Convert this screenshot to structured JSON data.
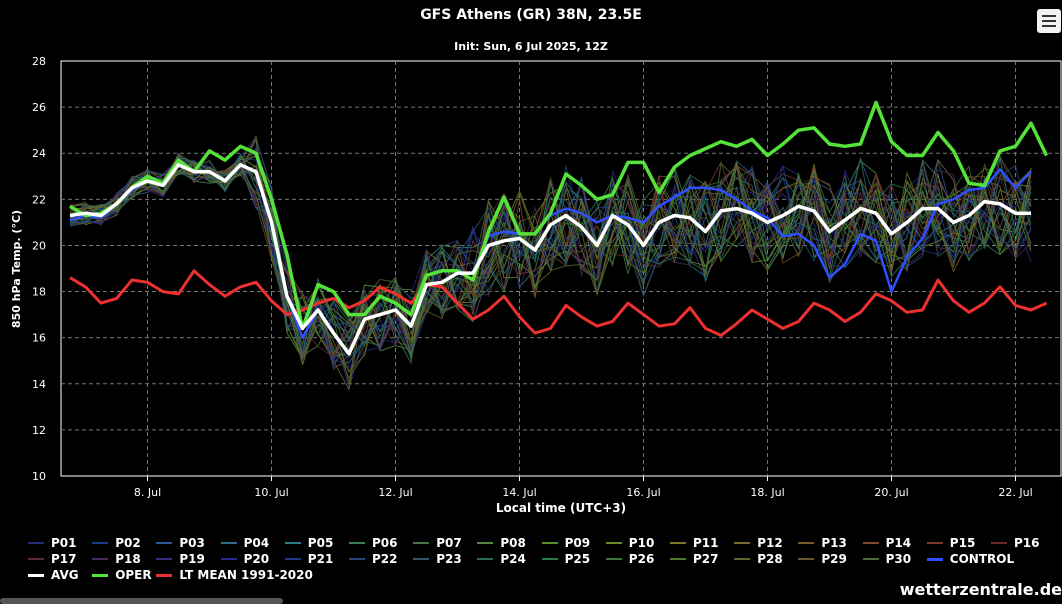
{
  "title": "GFS Athens (GR) 38N, 23.5E",
  "subtitle": "Init: Sun, 6 Jul 2025, 12Z",
  "watermark": "wetterzentrale.de",
  "menu_icon": "hamburger-menu-icon",
  "chart_data": {
    "type": "line",
    "title": "GFS Athens (GR) 38N, 23.5E",
    "subtitle": "Init: Sun, 6 Jul 2025, 12Z",
    "xlabel": "Local time (UTC+3)",
    "ylabel": "850 hPa Temp. (°C)",
    "ylim": [
      10,
      28
    ],
    "yticks": [
      10,
      12,
      14,
      16,
      18,
      20,
      22,
      24,
      26,
      28
    ],
    "xticks": [
      {
        "day": 8,
        "label": "8. Jul"
      },
      {
        "day": 10,
        "label": "10. Jul"
      },
      {
        "day": 12,
        "label": "12. Jul"
      },
      {
        "day": 14,
        "label": "14. Jul"
      },
      {
        "day": 16,
        "label": "16. Jul"
      },
      {
        "day": 18,
        "label": "18. Jul"
      },
      {
        "day": 20,
        "label": "20. Jul"
      },
      {
        "day": 22,
        "label": "22. Jul"
      }
    ],
    "grid": true,
    "legend_position": "bottom",
    "x_start": "2025-07-06 18:00",
    "x_step_hours": 6,
    "colors": {
      "control": "#2f4fff",
      "avg": "#ffffff",
      "oper": "#55e33a",
      "ltmean": "#ee3030"
    },
    "member_colors": [
      "#1f2d7a",
      "#1c3a8c",
      "#2d5a9a",
      "#2a6b8f",
      "#2f7b8e",
      "#3a7f5a",
      "#3f7a45",
      "#4a8a3a",
      "#5a8f2e",
      "#6c8a2a",
      "#7a7a2a",
      "#7e6a2a",
      "#7d5a2a",
      "#7a4a2a",
      "#7a3a2a",
      "#6a2a2a",
      "#5a2a3a",
      "#4a2a5a",
      "#3a2a7a",
      "#2a2a8a",
      "#1f3a8a",
      "#1f4a7a",
      "#2a5a6a",
      "#2a6a5a",
      "#2a7a4a",
      "#3a7a3a",
      "#4a7a2a",
      "#5a6a2a",
      "#6a5a2a",
      "#4a6a3a"
    ],
    "series": [
      {
        "name": "AVG",
        "values": [
          21.3,
          21.4,
          21.3,
          21.8,
          22.5,
          22.8,
          22.6,
          23.5,
          23.2,
          23.2,
          22.8,
          23.5,
          23.2,
          21.0,
          17.8,
          16.4,
          17.2,
          16.2,
          15.3,
          16.8,
          17.0,
          17.2,
          16.5,
          18.3,
          18.4,
          18.8,
          18.8,
          20.0,
          20.2,
          20.3,
          19.8,
          20.9,
          21.3,
          20.8,
          20.0,
          21.3,
          20.9,
          20.0,
          21.0,
          21.3,
          21.2,
          20.6,
          21.5,
          21.6,
          21.4,
          21.0,
          21.3,
          21.7,
          21.5,
          20.6,
          21.1,
          21.6,
          21.4,
          20.5,
          21.0,
          21.6,
          21.6,
          21.0,
          21.3,
          21.9,
          21.8,
          21.4,
          21.4
        ]
      },
      {
        "name": "OPER",
        "values": [
          21.7,
          21.3,
          21.4,
          21.8,
          22.5,
          23.0,
          22.7,
          23.7,
          23.2,
          24.1,
          23.7,
          24.3,
          24.0,
          22.0,
          19.6,
          16.4,
          18.3,
          18.0,
          17.0,
          17.0,
          17.8,
          17.5,
          17.0,
          18.7,
          18.9,
          18.9,
          18.5,
          20.6,
          22.1,
          20.5,
          20.5,
          21.4,
          23.1,
          22.6,
          22.0,
          22.2,
          23.6,
          23.6,
          22.3,
          23.4,
          23.9,
          24.2,
          24.5,
          24.3,
          24.6,
          23.9,
          24.4,
          25.0,
          25.1,
          24.4,
          24.3,
          24.4,
          26.2,
          24.5,
          23.9,
          23.9,
          24.9,
          24.1,
          22.7,
          22.6,
          24.1,
          24.3,
          25.3,
          23.9
        ]
      },
      {
        "name": "CONTROL",
        "values": [
          21.1,
          21.3,
          21.2,
          21.8,
          22.4,
          22.8,
          22.7,
          23.5,
          23.2,
          23.2,
          22.8,
          23.5,
          23.2,
          21.0,
          17.8,
          16.0,
          17.2,
          16.2,
          15.3,
          16.8,
          17.0,
          17.2,
          16.5,
          18.3,
          18.4,
          18.8,
          18.8,
          20.4,
          20.6,
          20.5,
          20.5,
          21.3,
          21.6,
          21.4,
          21.0,
          21.3,
          21.2,
          21.0,
          21.7,
          22.1,
          22.5,
          22.5,
          22.4,
          22.0,
          21.5,
          21.2,
          20.4,
          20.5,
          20.0,
          18.6,
          19.2,
          20.5,
          20.2,
          18.0,
          19.5,
          20.3,
          21.8,
          22.0,
          22.4,
          22.5,
          23.3,
          22.5,
          23.2
        ]
      },
      {
        "name": "LT MEAN 1991-2020",
        "values": [
          18.6,
          18.2,
          17.5,
          17.7,
          18.5,
          18.4,
          18.0,
          17.9,
          18.9,
          18.3,
          17.8,
          18.2,
          18.4,
          17.6,
          17.0,
          17.2,
          17.5,
          17.7,
          17.3,
          17.6,
          18.2,
          17.9,
          17.5,
          18.3,
          18.2,
          17.5,
          16.8,
          17.2,
          17.8,
          16.9,
          16.2,
          16.4,
          17.4,
          16.9,
          16.5,
          16.7,
          17.5,
          17.0,
          16.5,
          16.6,
          17.3,
          16.4,
          16.1,
          16.6,
          17.2,
          16.8,
          16.4,
          16.7,
          17.5,
          17.2,
          16.7,
          17.1,
          17.9,
          17.6,
          17.1,
          17.2,
          18.5,
          17.6,
          17.1,
          17.5,
          18.2,
          17.4,
          17.2,
          17.5
        ]
      }
    ],
    "legend": {
      "members": [
        "P01",
        "P02",
        "P03",
        "P04",
        "P05",
        "P06",
        "P07",
        "P08",
        "P09",
        "P10",
        "P11",
        "P12",
        "P13",
        "P14",
        "P15",
        "P16",
        "P17",
        "P18",
        "P19",
        "P20",
        "P21",
        "P22",
        "P23",
        "P24",
        "P25",
        "P26",
        "P27",
        "P28",
        "P29",
        "P30"
      ],
      "control": "CONTROL",
      "avg": "AVG",
      "oper": "OPER",
      "ltmean": "LT MEAN 1991-2020"
    }
  }
}
